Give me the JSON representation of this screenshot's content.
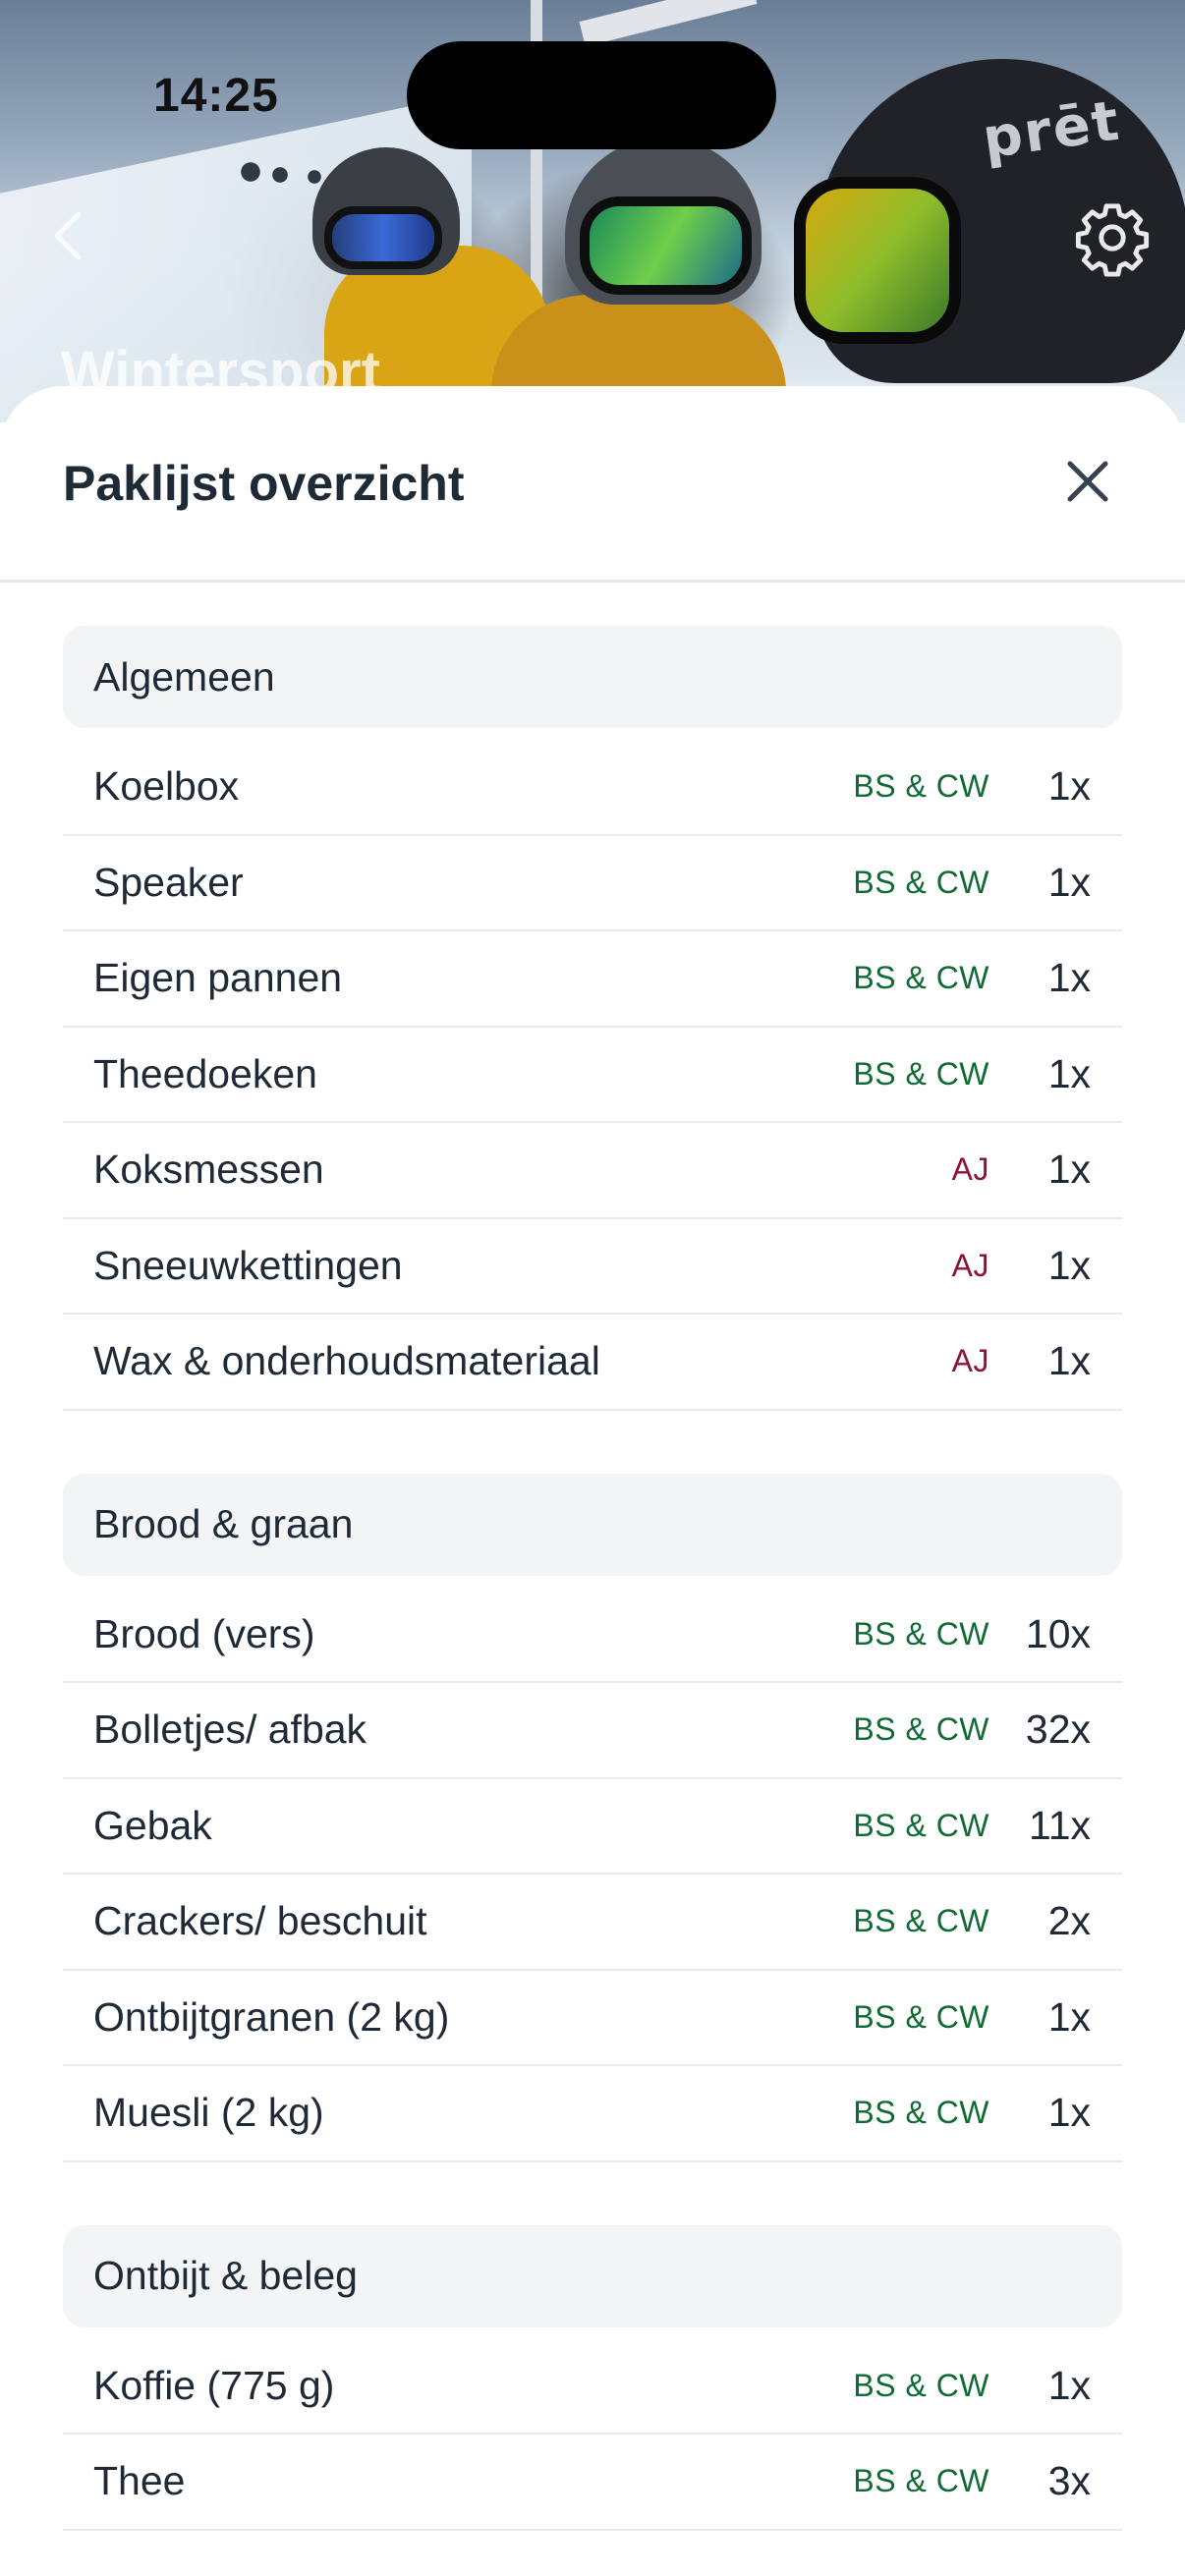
{
  "status_bar": {
    "time": "14:25"
  },
  "header": {
    "title": "Wintersport",
    "brand_text": "prēt"
  },
  "sheet": {
    "title": "Paklijst overzicht",
    "sections": [
      {
        "title": "Algemeen",
        "items": [
          {
            "name": "Koelbox",
            "assignee": "BS & CW",
            "qty": "1x"
          },
          {
            "name": "Speaker",
            "assignee": "BS & CW",
            "qty": "1x"
          },
          {
            "name": "Eigen pannen",
            "assignee": "BS & CW",
            "qty": "1x"
          },
          {
            "name": "Theedoeken",
            "assignee": "BS & CW",
            "qty": "1x"
          },
          {
            "name": "Koksmessen",
            "assignee": "AJ",
            "qty": "1x"
          },
          {
            "name": "Sneeuwkettingen",
            "assignee": "AJ",
            "qty": "1x"
          },
          {
            "name": "Wax & onderhoudsmateriaal",
            "assignee": "AJ",
            "qty": "1x"
          }
        ]
      },
      {
        "title": "Brood & graan",
        "items": [
          {
            "name": "Brood (vers)",
            "assignee": "BS & CW",
            "qty": "10x"
          },
          {
            "name": "Bolletjes/ afbak",
            "assignee": "BS & CW",
            "qty": "32x"
          },
          {
            "name": "Gebak",
            "assignee": "BS & CW",
            "qty": "11x"
          },
          {
            "name": "Crackers/ beschuit",
            "assignee": "BS & CW",
            "qty": "2x"
          },
          {
            "name": "Ontbijtgranen (2 kg)",
            "assignee": "BS & CW",
            "qty": "1x"
          },
          {
            "name": "Muesli (2 kg)",
            "assignee": "BS & CW",
            "qty": "1x"
          }
        ]
      },
      {
        "title": "Ontbijt & beleg",
        "items": [
          {
            "name": "Koffie (775 g)",
            "assignee": "BS & CW",
            "qty": "1x"
          },
          {
            "name": "Thee",
            "assignee": "BS & CW",
            "qty": "3x"
          }
        ]
      }
    ]
  },
  "colors": {
    "assignee_bs_cw": "#0f6b34",
    "assignee_aj": "#8b1538",
    "section_bg": "#f3f4f6",
    "text": "#1f2a37"
  },
  "icons": {
    "back": "chevron-left-icon",
    "settings": "gear-icon",
    "close": "close-icon"
  }
}
